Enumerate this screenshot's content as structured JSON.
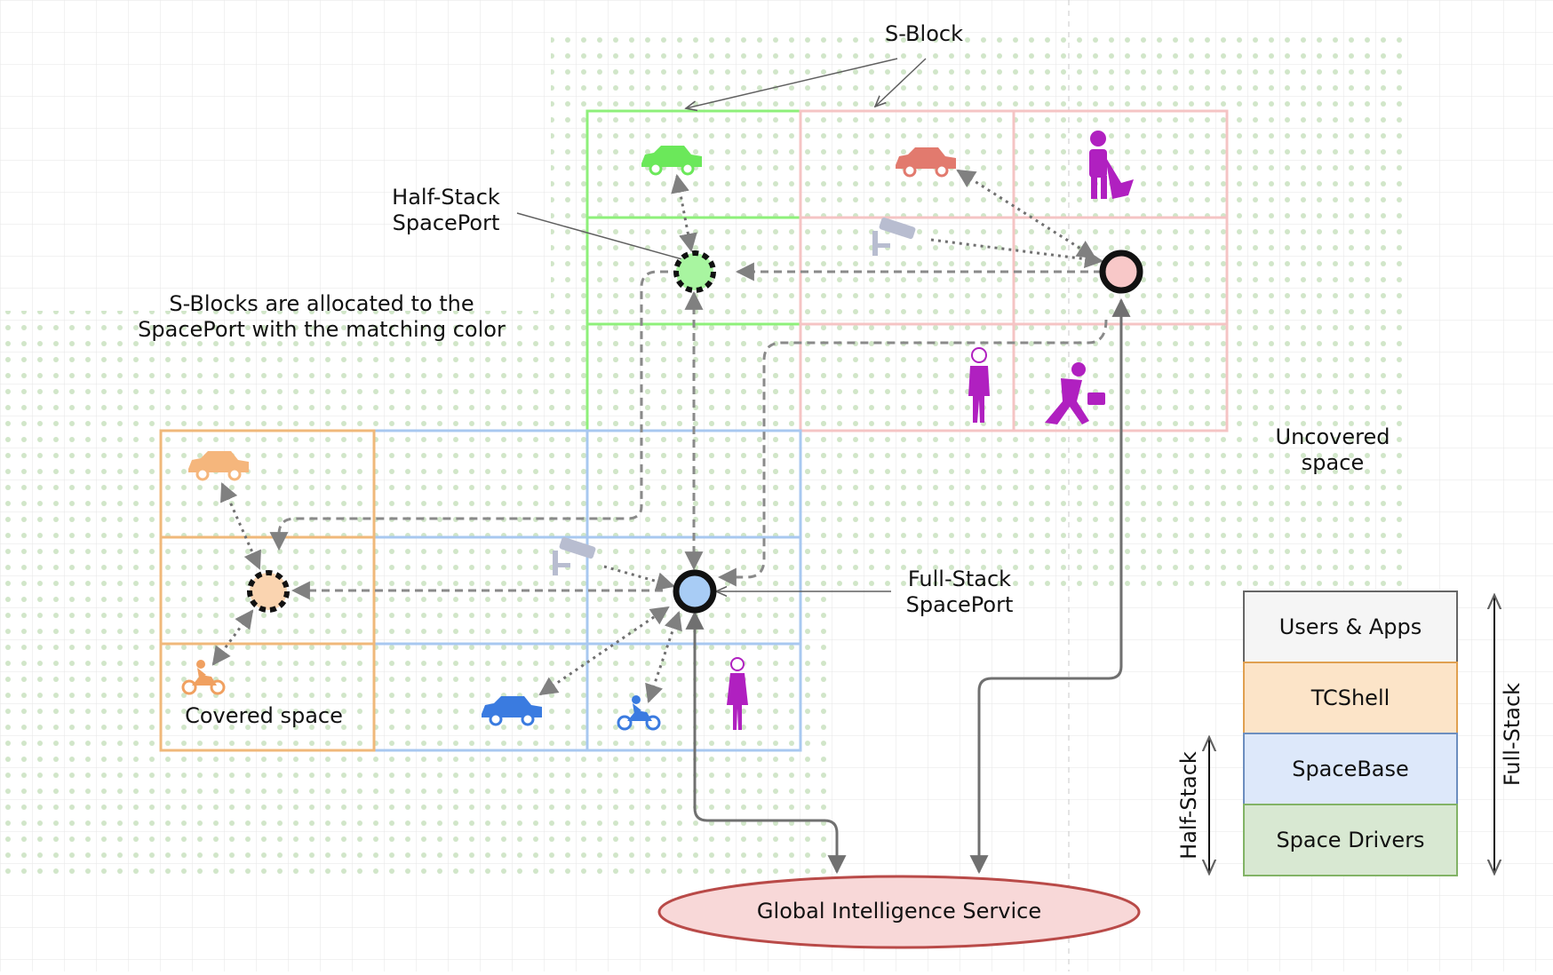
{
  "labels": {
    "s_block": "S-Block",
    "half_stack_spaceport_line1": "Half-Stack",
    "half_stack_spaceport_line2": "SpacePort",
    "allocation_note_line1": "S-Blocks are allocated to the",
    "allocation_note_line2": "SpacePort with the matching color",
    "uncovered_line1": "Uncovered",
    "uncovered_line2": "space",
    "full_stack_spaceport_line1": "Full-Stack",
    "full_stack_spaceport_line2": "SpacePort",
    "covered_space": "Covered space",
    "global_service": "Global Intelligence Service"
  },
  "stack": {
    "layers": [
      "Users & Apps",
      "TCShell",
      "SpaceBase",
      "Space Drivers"
    ],
    "layer_colors": [
      "#f5f5f5",
      "#fce4c8",
      "#dde8fa",
      "#d8e8d2"
    ],
    "layer_borders": [
      "#666666",
      "#e0a050",
      "#6c8ebf",
      "#82b366"
    ],
    "half_stack_label": "Half-Stack",
    "full_stack_label": "Full-Stack"
  },
  "colors": {
    "green_block": "#8ef07a",
    "pink_block": "#f5c4c4",
    "orange_block": "#f0b87a",
    "blue_block": "#a8c8f0",
    "spaceport_green_fill": "#a8f5a0",
    "spaceport_pink_fill": "#f8c8c8",
    "spaceport_blue_fill": "#a8ccf5",
    "spaceport_orange_fill": "#fad4b0",
    "global_service_fill": "#f8d8d8",
    "global_service_border": "#b94a48",
    "connector": "#808080",
    "person": "#b020c0"
  },
  "icons": [
    "car-icon",
    "camera-icon",
    "worker-icon",
    "person-icon",
    "running-person-icon",
    "motorbike-icon",
    "woman-icon"
  ]
}
